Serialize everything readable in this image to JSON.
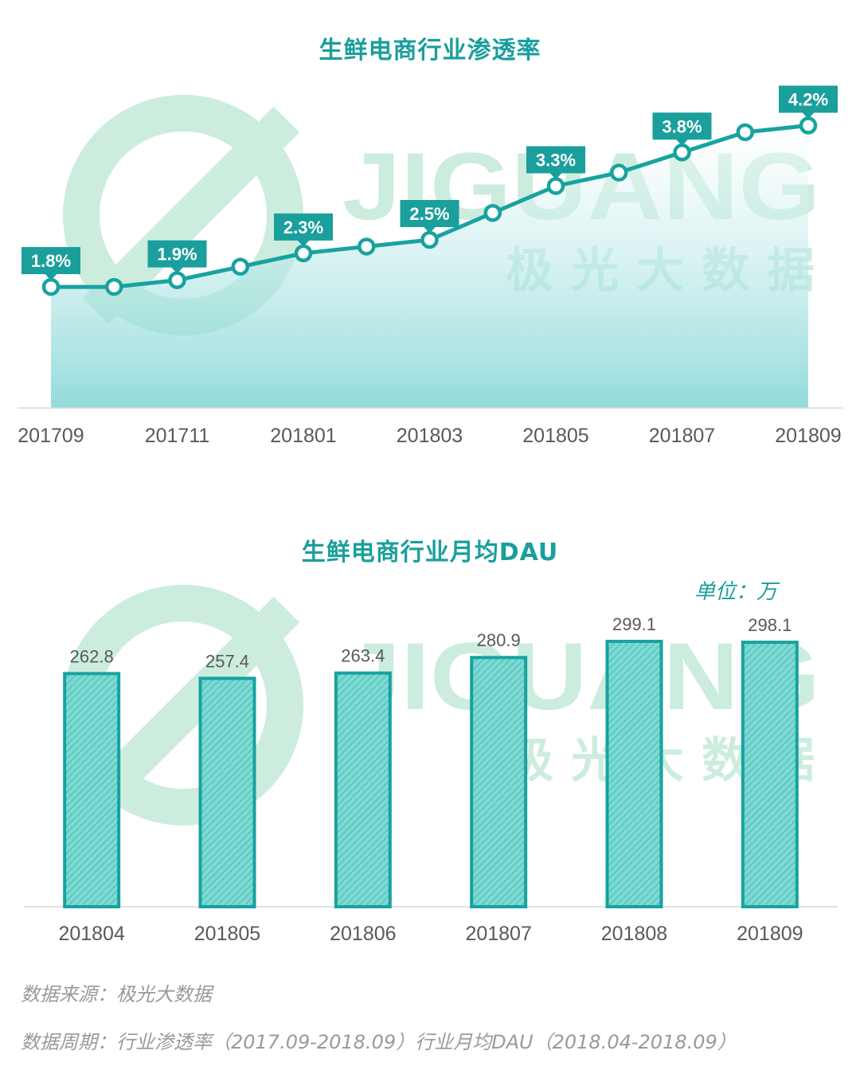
{
  "colors": {
    "accent": "#1a9f9c",
    "line": "#17a3a0",
    "bar_fill": "#5fcfc8",
    "watermark": "#8fd9b4",
    "text_gray": "#595959",
    "note_gray": "#9a9a9a"
  },
  "watermark": {
    "brand": "JIGUANG",
    "cn": "极光大数据"
  },
  "chart_data": [
    {
      "type": "area",
      "title": "生鲜电商行业渗透率",
      "categories": [
        "201709",
        "201710",
        "201711",
        "201712",
        "201801",
        "201802",
        "201803",
        "201804",
        "201805",
        "201806",
        "201807",
        "201808",
        "201809"
      ],
      "tick_labels": [
        "201709",
        "201711",
        "201801",
        "201803",
        "201805",
        "201807",
        "201809"
      ],
      "values": [
        1.8,
        1.8,
        1.9,
        2.1,
        2.3,
        2.4,
        2.5,
        2.9,
        3.3,
        3.5,
        3.8,
        4.1,
        4.2
      ],
      "data_labels": [
        {
          "category": "201709",
          "text": "1.8%"
        },
        {
          "category": "201711",
          "text": "1.9%"
        },
        {
          "category": "201801",
          "text": "2.3%"
        },
        {
          "category": "201803",
          "text": "2.5%"
        },
        {
          "category": "201805",
          "text": "3.3%"
        },
        {
          "category": "201807",
          "text": "3.8%"
        },
        {
          "category": "201809",
          "text": "4.2%"
        }
      ],
      "unit": "%",
      "ylim": [
        0,
        5
      ],
      "grid": false,
      "legend": "none"
    },
    {
      "type": "bar",
      "title": "生鲜电商行业月均DAU",
      "unit_label": "单位：万",
      "categories": [
        "201804",
        "201805",
        "201806",
        "201807",
        "201808",
        "201809"
      ],
      "values": [
        262.8,
        257.4,
        263.4,
        280.9,
        299.1,
        298.1
      ],
      "value_labels": [
        "262.8",
        "257.4",
        "263.4",
        "280.9",
        "299.1",
        "298.1"
      ],
      "ylim": [
        0,
        335
      ],
      "grid": false,
      "legend": "none"
    }
  ],
  "footnotes": {
    "source": "数据来源：极光大数据",
    "period": "数据周期：行业渗透率（2017.09-2018.09）行业月均DAU（2018.04-2018.09）"
  }
}
